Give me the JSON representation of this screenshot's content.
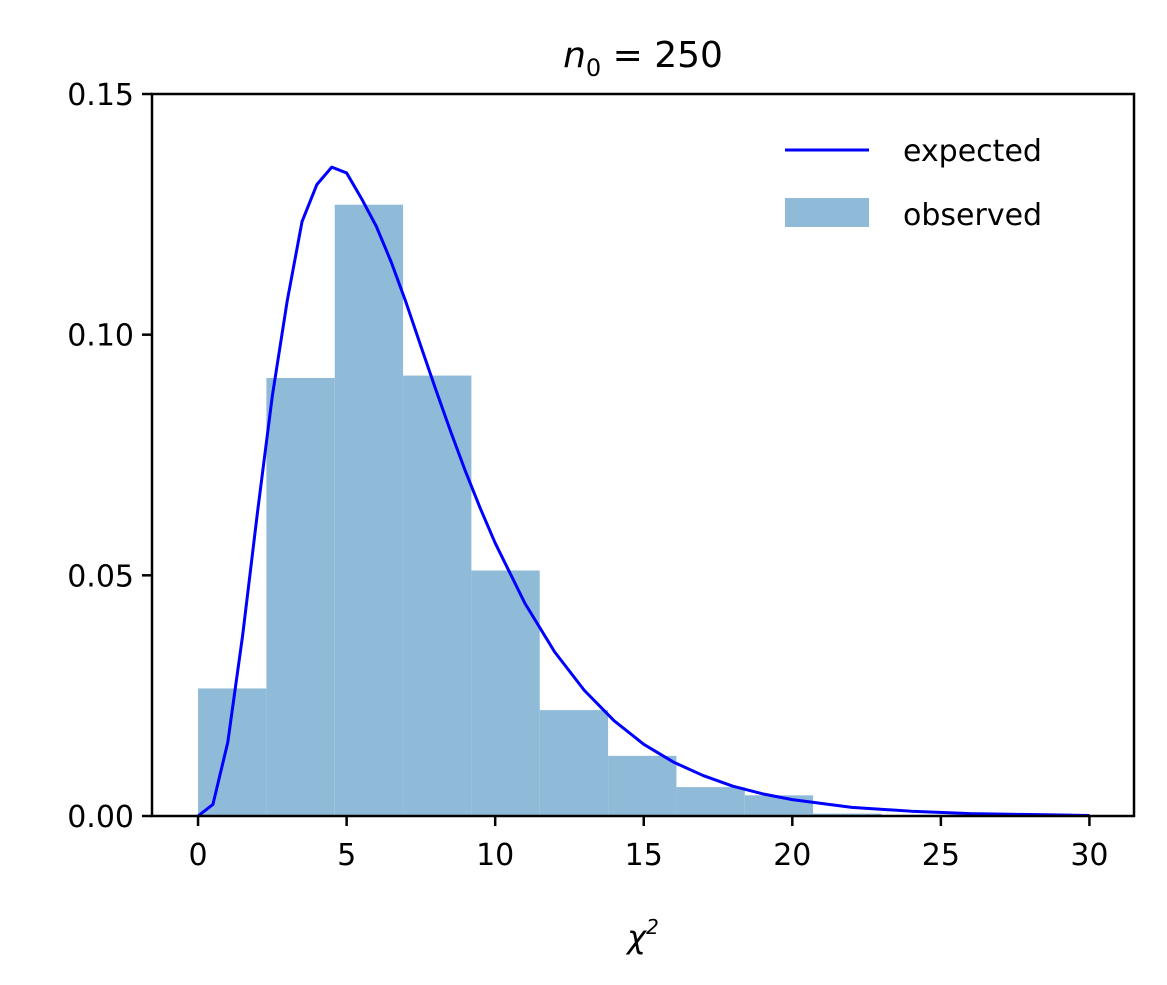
{
  "chart_data": {
    "type": "bar",
    "title": {
      "var": "n",
      "sub": "0",
      "rest": " = 250"
    },
    "xlabel": {
      "base": "χ",
      "sup": "2"
    },
    "ylabel": "",
    "xlim": [
      -1.55,
      31.5
    ],
    "ylim": [
      0,
      0.15
    ],
    "x_ticks": [
      0,
      5,
      10,
      15,
      20,
      25,
      30
    ],
    "x_tick_labels": [
      "0",
      "5",
      "10",
      "15",
      "20",
      "25",
      "30"
    ],
    "y_ticks": [
      0,
      0.05,
      0.1,
      0.15
    ],
    "y_tick_labels": [
      "0.00",
      "0.05",
      "0.10",
      "0.15"
    ],
    "grid": false,
    "legend_position": "top-right",
    "series": [
      {
        "name": "observed",
        "kind": "histogram",
        "color": "#8fbbd9",
        "bin_edges": [
          0.0,
          2.3,
          4.6,
          6.9,
          9.2,
          11.5,
          13.8,
          16.1,
          18.4,
          20.7,
          23.0
        ],
        "values": [
          0.0265,
          0.091,
          0.127,
          0.0915,
          0.051,
          0.022,
          0.0125,
          0.006,
          0.0043,
          0.0005
        ]
      },
      {
        "name": "expected",
        "kind": "line",
        "color": "#0000ff",
        "x": [
          0,
          0.5,
          1,
          1.5,
          2,
          2.5,
          3,
          3.5,
          4,
          4.5,
          5,
          5.5,
          6,
          6.5,
          7,
          7.5,
          8,
          8.5,
          9,
          9.5,
          10,
          11,
          12,
          13,
          14,
          15,
          16,
          17,
          18,
          19,
          20,
          22,
          24,
          26,
          28,
          30
        ],
        "y": [
          0,
          0.0024,
          0.0153,
          0.0375,
          0.0631,
          0.0873,
          0.107,
          0.1235,
          0.1312,
          0.1348,
          0.1336,
          0.1283,
          0.1225,
          0.1151,
          0.1067,
          0.0976,
          0.0886,
          0.0799,
          0.0716,
          0.0639,
          0.0567,
          0.0442,
          0.0341,
          0.0261,
          0.0198,
          0.0149,
          0.0112,
          0.0084,
          0.0062,
          0.0046,
          0.0034,
          0.0018,
          0.001,
          0.0005,
          0.0003,
          0.0001
        ]
      }
    ]
  }
}
